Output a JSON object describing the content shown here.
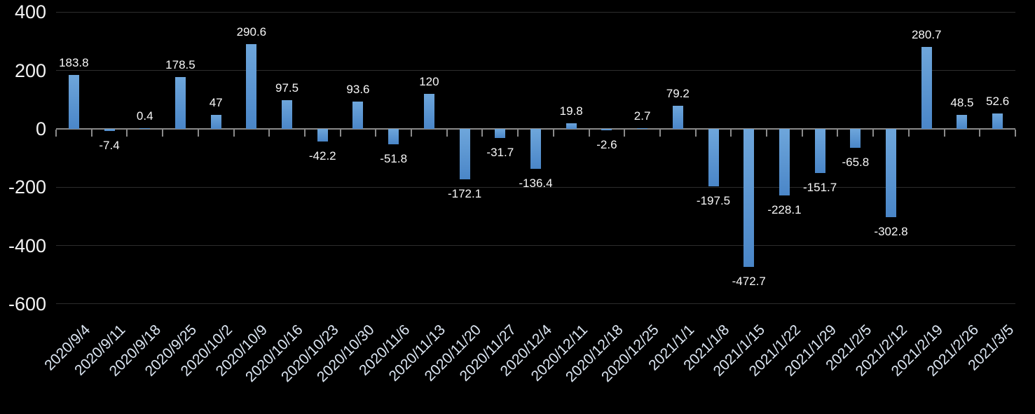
{
  "chart_data": {
    "type": "bar",
    "title": "",
    "xlabel": "",
    "ylabel": "",
    "categories": [
      "2020/9/4",
      "2020/9/11",
      "2020/9/18",
      "2020/9/25",
      "2020/10/2",
      "2020/10/9",
      "2020/10/16",
      "2020/10/23",
      "2020/10/30",
      "2020/11/6",
      "2020/11/13",
      "2020/11/20",
      "2020/11/27",
      "2020/12/4",
      "2020/12/11",
      "2020/12/18",
      "2020/12/25",
      "2021/1/1",
      "2021/1/8",
      "2021/1/15",
      "2021/1/22",
      "2021/1/29",
      "2021/2/5",
      "2021/2/12",
      "2021/2/19",
      "2021/2/26",
      "2021/3/5"
    ],
    "values": [
      183.8,
      -7.4,
      0.4,
      178.5,
      47,
      290.6,
      97.5,
      -42.2,
      93.6,
      -51.8,
      120,
      -172.1,
      -31.7,
      -136.4,
      19.8,
      -2.6,
      2.7,
      79.2,
      -197.5,
      -472.7,
      -228.1,
      -151.7,
      -65.8,
      -302.8,
      280.7,
      48.5,
      52.6
    ],
    "value_labels": [
      "183.8",
      "-7.4",
      "0.4",
      "178.5",
      "47",
      "290.6",
      "97.5",
      "-42.2",
      "93.6",
      "-51.8",
      "120",
      "-172.1",
      "-31.7",
      "-136.4",
      "19.8",
      "-2.6",
      "2.7",
      "79.2",
      "-197.5",
      "-472.7",
      "-228.1",
      "-151.7",
      "-65.8",
      "-302.8",
      "280.7",
      "48.5",
      "52.6"
    ],
    "yticks": [
      400,
      200,
      0,
      -200,
      -400,
      -600
    ],
    "ytick_labels": [
      "400",
      "200",
      "0",
      "-200",
      "-400",
      "-600"
    ],
    "ylim": [
      -600,
      400
    ],
    "grid": true,
    "legend": false,
    "colors": {
      "background": "#000000",
      "bar_top": "#6ea6db",
      "bar_bottom": "#4a86c8",
      "gridline": "#2d2d2d",
      "axis_line": "#8a8a8a",
      "data_label": "#f7f7f7",
      "y_tick_label": "#f2f2f2",
      "x_tick_label": "#dce6f2"
    }
  }
}
